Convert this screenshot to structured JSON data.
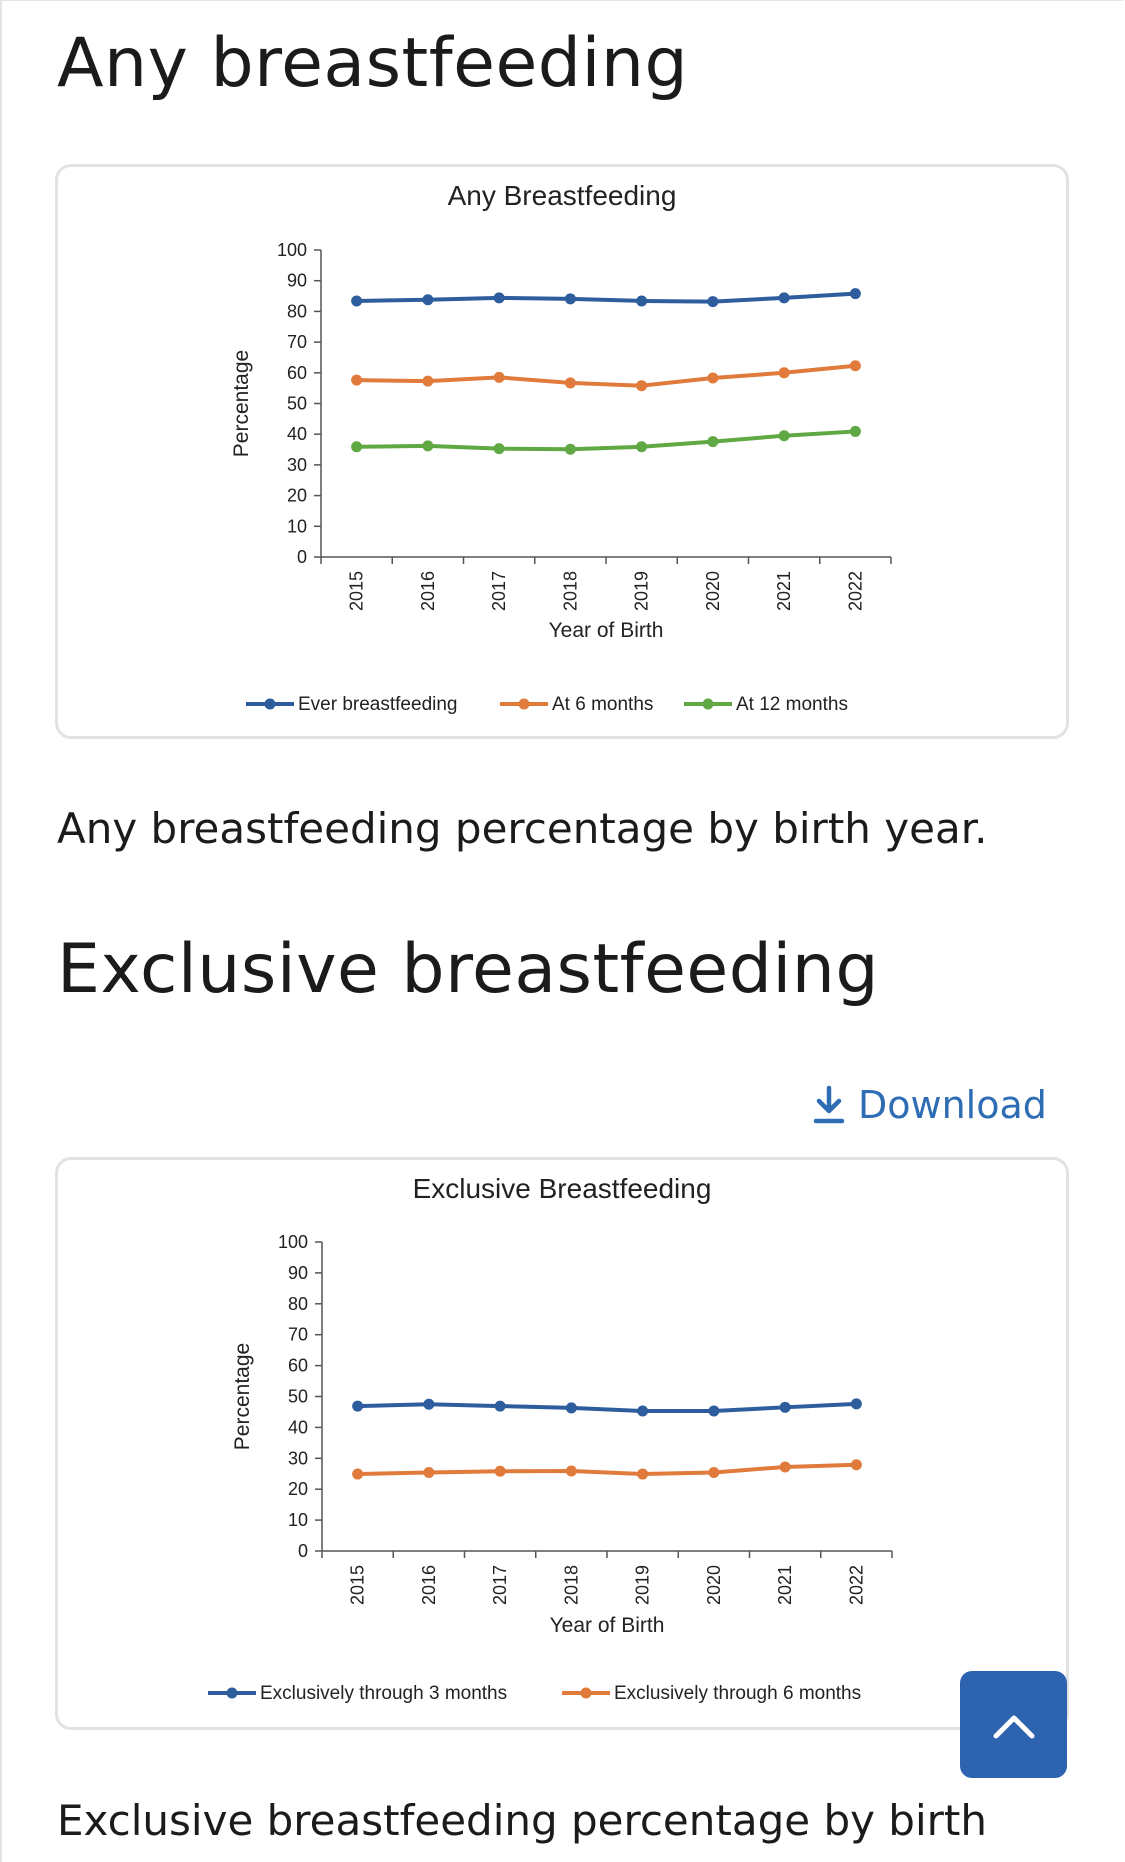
{
  "sections": {
    "any_heading": "Any breastfeeding",
    "any_caption": "Any breastfeeding percentage by birth year.",
    "exclusive_heading": "Exclusive breastfeeding",
    "exclusive_caption": "Exclusive breastfeeding percentage by birth",
    "download_label": "Download"
  },
  "icons": {
    "download": "download-icon",
    "back_to_top": "chevron-up-icon"
  },
  "colors": {
    "blue": "#2e5d9e",
    "orange": "#e07b3c",
    "green": "#5fa843",
    "link": "#2e6db4",
    "button": "#2e63b0"
  },
  "chart_data": [
    {
      "type": "line",
      "title": "Any Breastfeeding",
      "xlabel": "Year of Birth",
      "ylabel": "Percentage",
      "ylim": [
        0,
        100
      ],
      "yticks": [
        "0",
        "10",
        "20",
        "30",
        "40",
        "50",
        "60",
        "70",
        "80",
        "90",
        "100"
      ],
      "categories": [
        "2015",
        "2016",
        "2017",
        "2018",
        "2019",
        "2020",
        "2021",
        "2022"
      ],
      "legend_position": "bottom",
      "series": [
        {
          "name": "Ever breastfeeding",
          "color": "#2e5d9e",
          "values": [
            83.4,
            83.8,
            84.4,
            84.1,
            83.4,
            83.2,
            84.4,
            85.8
          ]
        },
        {
          "name": "At 6 months",
          "color": "#e07b3c",
          "values": [
            57.6,
            57.3,
            58.5,
            56.7,
            55.8,
            58.3,
            60.0,
            62.3
          ]
        },
        {
          "name": "At 12 months",
          "color": "#5fa843",
          "values": [
            35.9,
            36.2,
            35.3,
            35.1,
            35.9,
            37.6,
            39.5,
            40.9
          ]
        }
      ]
    },
    {
      "type": "line",
      "title": "Exclusive Breastfeeding",
      "xlabel": "Year of Birth",
      "ylabel": "Percentage",
      "ylim": [
        0,
        100
      ],
      "yticks": [
        "0",
        "10",
        "20",
        "30",
        "40",
        "50",
        "60",
        "70",
        "80",
        "90",
        "100"
      ],
      "categories": [
        "2015",
        "2016",
        "2017",
        "2018",
        "2019",
        "2020",
        "2021",
        "2022"
      ],
      "legend_position": "bottom",
      "series": [
        {
          "name": "Exclusively through 3 months",
          "color": "#2e5d9e",
          "values": [
            46.9,
            47.5,
            46.9,
            46.3,
            45.3,
            45.3,
            46.5,
            47.6
          ]
        },
        {
          "name": "Exclusively through 6 months",
          "color": "#e07b3c",
          "values": [
            24.9,
            25.4,
            25.8,
            25.9,
            24.9,
            25.4,
            27.2,
            27.9
          ]
        }
      ]
    }
  ]
}
